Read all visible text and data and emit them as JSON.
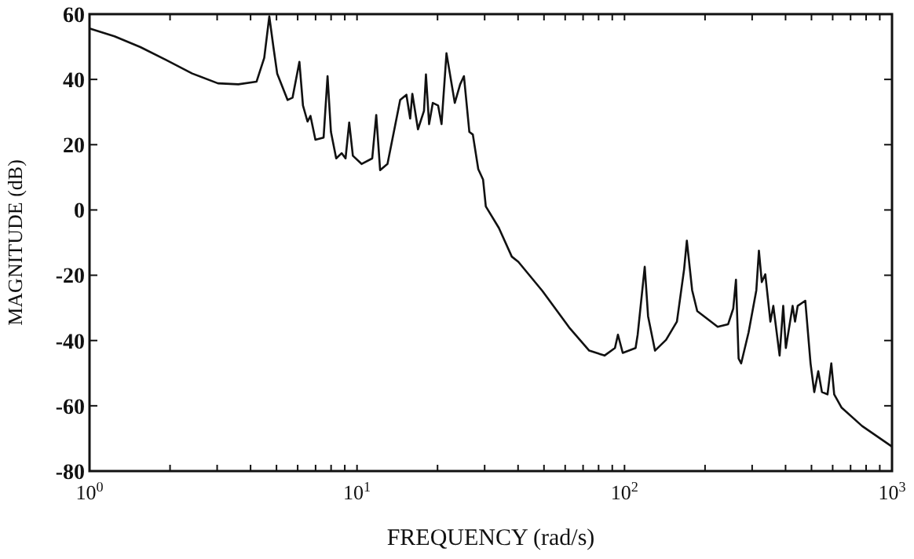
{
  "chart_data": {
    "type": "line",
    "xlabel": "FREQUENCY (rad/s)",
    "ylabel": "MAGNITUDE (dB)",
    "log": "x",
    "grid": false,
    "marker": "none",
    "line_style": "solid",
    "xlim": [
      1,
      1000
    ],
    "ylim": [
      -80,
      60
    ],
    "xticks": [
      {
        "value": 1,
        "label": "10$^{0}$"
      },
      {
        "value": 2,
        "label": null
      },
      {
        "value": 3,
        "label": null
      },
      {
        "value": 4,
        "label": null
      },
      {
        "value": 5,
        "label": null
      },
      {
        "value": 6,
        "label": null
      },
      {
        "value": 7,
        "label": null
      },
      {
        "value": 8,
        "label": null
      },
      {
        "value": 9,
        "label": null
      },
      {
        "value": 10,
        "label": "10$^{1}$"
      },
      {
        "value": 20,
        "label": null
      },
      {
        "value": 30,
        "label": null
      },
      {
        "value": 40,
        "label": null
      },
      {
        "value": 50,
        "label": null
      },
      {
        "value": 60,
        "label": null
      },
      {
        "value": 70,
        "label": null
      },
      {
        "value": 80,
        "label": null
      },
      {
        "value": 90,
        "label": null
      },
      {
        "value": 100,
        "label": "10$^{2}$"
      },
      {
        "value": 200,
        "label": null
      },
      {
        "value": 300,
        "label": null
      },
      {
        "value": 400,
        "label": null
      },
      {
        "value": 500,
        "label": null
      },
      {
        "value": 600,
        "label": null
      },
      {
        "value": 700,
        "label": null
      },
      {
        "value": 800,
        "label": null
      },
      {
        "value": 900,
        "label": null
      },
      {
        "value": 1000,
        "label": "10$^{3}$"
      }
    ],
    "yticks": [
      60,
      40,
      20,
      0,
      -20,
      -40,
      -60,
      -80
    ],
    "series": [
      {
        "color": "#111111",
        "x": [
          1,
          1.24,
          1.55,
          1.94,
          2.42,
          3.02,
          3.6,
          4.21,
          4.5,
          4.7,
          4.87,
          5.03,
          5.5,
          5.74,
          6.09,
          6.28,
          6.53,
          6.7,
          6.99,
          7.5,
          7.76,
          7.99,
          8.36,
          8.76,
          9.06,
          9.35,
          9.65,
          10.4,
          11.4,
          11.8,
          12.2,
          13,
          14.5,
          15.3,
          15.8,
          16.1,
          16.9,
          17.8,
          18.1,
          18.6,
          19.2,
          20.1,
          20.7,
          21.6,
          23.2,
          24.3,
          25.1,
          26.3,
          27.1,
          28.4,
          29.6,
          30.3,
          33.9,
          37.9,
          40.1,
          49.3,
          62.1,
          73.8,
          84.2,
          92.1,
          94.5,
          98.5,
          110,
          112,
          119,
          122.5,
          130,
          143,
          157,
          167,
          171,
          179,
          187,
          223,
          244,
          255,
          261,
          267,
          273,
          291,
          311,
          318,
          326,
          336,
          351,
          360,
          380,
          392,
          401,
          425,
          434,
          444,
          474,
          496,
          512,
          530,
          547,
          574,
          593,
          608,
          647,
          773,
          1000
        ],
        "values": [
          55.6,
          53.2,
          49.9,
          45.9,
          41.8,
          38.8,
          38.5,
          39.3,
          46.6,
          59.3,
          49.9,
          41.8,
          33.7,
          34.4,
          45.4,
          32,
          27.1,
          28.8,
          21.5,
          22.2,
          41,
          23.9,
          15.8,
          17.4,
          15.8,
          26.8,
          16.6,
          14.1,
          15.8,
          29.1,
          12.2,
          14.1,
          33.7,
          35.3,
          28,
          35.6,
          24.7,
          30.4,
          41.5,
          26.3,
          32.8,
          32,
          26.3,
          48,
          32.8,
          38.5,
          41,
          23.9,
          23.1,
          12.5,
          9.3,
          1.1,
          -5.5,
          -14.3,
          -15.9,
          -24.8,
          -36,
          -43.1,
          -44.6,
          -42.3,
          -38.2,
          -43.8,
          -42.3,
          -38.2,
          -17.4,
          -32.6,
          -43.1,
          -39.8,
          -34.2,
          -18.2,
          -9.4,
          -24.6,
          -31,
          -35.8,
          -35,
          -30.2,
          -21.4,
          -45.5,
          -47,
          -37.5,
          -24.6,
          -12.5,
          -22.1,
          -19.7,
          -34.2,
          -29.4,
          -44.6,
          -29.4,
          -42.3,
          -29.4,
          -34.2,
          -29.4,
          -27.8,
          -47,
          -55.8,
          -49.4,
          -55.8,
          -56.5,
          -47,
          -56.5,
          -60.5,
          -66.2,
          -72.5
        ]
      }
    ]
  }
}
